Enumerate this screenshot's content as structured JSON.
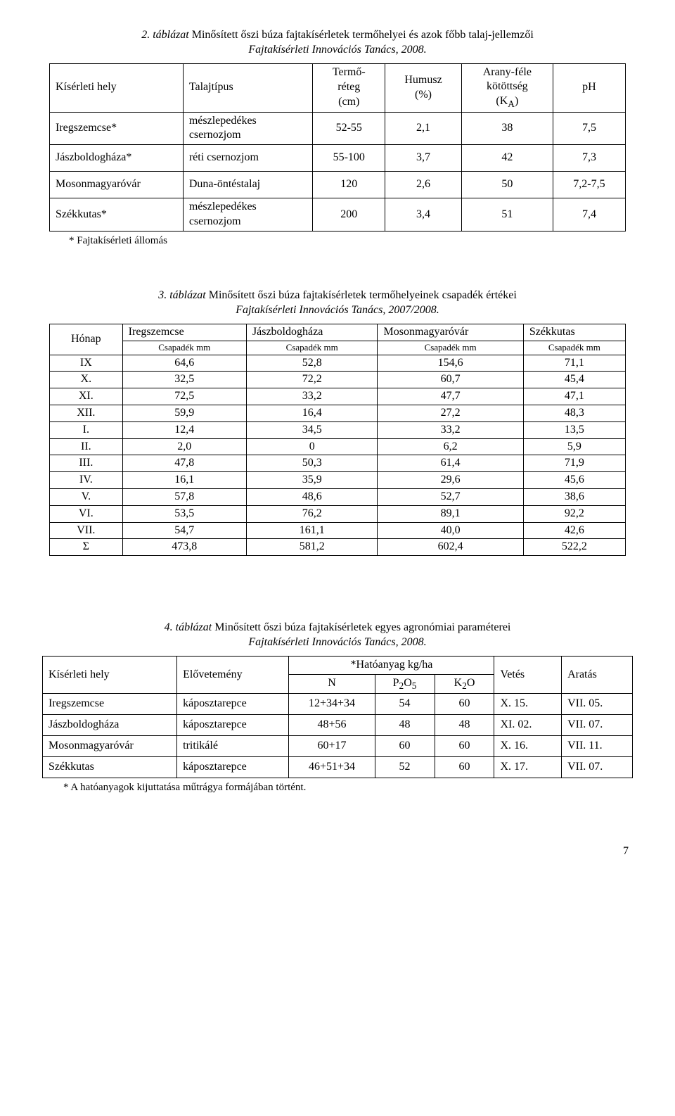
{
  "table1": {
    "caption_num": "2. táblázat",
    "caption_rest": " Minősített őszi búza fajtakísérletek termőhelyei és azok főbb talaj-jellemzői",
    "caption_line2": "Fajtakísérleti Innovációs Tanács, 2008.",
    "headers": {
      "c1": "Kísérleti hely",
      "c2": "Talajtípus",
      "c3_l1": "Termő-",
      "c3_l2": "réteg",
      "c3_l3": "(cm)",
      "c4_l1": "Humusz",
      "c4_l2": "(%)",
      "c5_l1": "Arany-féle",
      "c5_l2": "kötöttség",
      "c5_l3": "(K",
      "c5_sub": "A",
      "c5_l3b": ")",
      "c6": "pH"
    },
    "rows": [
      {
        "c1": "Iregszemcse*",
        "c2_l1": "mészlepedékes",
        "c2_l2": "csernozjom",
        "c3": "52-55",
        "c4": "2,1",
        "c5": "38",
        "c6": "7,5"
      },
      {
        "c1": "Jászboldogháza*",
        "c2": "réti csernozjom",
        "c3": "55-100",
        "c4": "3,7",
        "c5": "42",
        "c6": "7,3"
      },
      {
        "c1": "Mosonmagyaróvár",
        "c2": "Duna-öntéstalaj",
        "c3": "120",
        "c4": "2,6",
        "c5": "50",
        "c6": "7,2-7,5"
      },
      {
        "c1": "Székkutas*",
        "c2_l1": "mészlepedékes",
        "c2_l2": "csernozjom",
        "c3": "200",
        "c4": "3,4",
        "c5": "51",
        "c6": "7,4"
      }
    ],
    "footnote": "* Fajtakísérleti állomás"
  },
  "table2": {
    "caption_num": "3. táblázat",
    "caption_rest": " Minősített őszi búza fajtakísérletek termőhelyeinek csapadék értékei",
    "caption_line2": "Fajtakísérleti Innovációs Tanács, 2007/2008.",
    "h_month": "Hónap",
    "h_cols": [
      "Iregszemcse",
      "Jászboldogháza",
      "Mosonmagyaróvár",
      "Székkutas"
    ],
    "h_sub": "Csapadék mm",
    "rows": [
      [
        "IX",
        "64,6",
        "52,8",
        "154,6",
        "71,1"
      ],
      [
        "X.",
        "32,5",
        "72,2",
        "60,7",
        "45,4"
      ],
      [
        "XI.",
        "72,5",
        "33,2",
        "47,7",
        "47,1"
      ],
      [
        "XII.",
        "59,9",
        "16,4",
        "27,2",
        "48,3"
      ],
      [
        "I.",
        "12,4",
        "34,5",
        "33,2",
        "13,5"
      ],
      [
        "II.",
        "2,0",
        "0",
        "6,2",
        "5,9"
      ],
      [
        "III.",
        "47,8",
        "50,3",
        "61,4",
        "71,9"
      ],
      [
        "IV.",
        "16,1",
        "35,9",
        "29,6",
        "45,6"
      ],
      [
        "V.",
        "57,8",
        "48,6",
        "52,7",
        "38,6"
      ],
      [
        "VI.",
        "53,5",
        "76,2",
        "89,1",
        "92,2"
      ],
      [
        "VII.",
        "54,7",
        "161,1",
        "40,0",
        "42,6"
      ],
      [
        "Σ",
        "473,8",
        "581,2",
        "602,4",
        "522,2"
      ]
    ]
  },
  "table3": {
    "caption_num": "4. táblázat",
    "caption_rest": " Minősített őszi búza fajtakísérletek egyes agronómiai paraméterei",
    "caption_line2": "Fajtakísérleti Innovációs Tanács, 2008.",
    "h_site": "Kísérleti hely",
    "h_prev": "Elővetemény",
    "h_top": "*Hatóanyag kg/ha",
    "h_n": "N",
    "h_p_pre": "P",
    "h_p_sub1": "2",
    "h_p_mid": "O",
    "h_p_sub2": "5",
    "h_k_pre": "K",
    "h_k_sub": "2",
    "h_k_post": "O",
    "h_sow": "Vetés",
    "h_harvest": "Aratás",
    "rows": [
      [
        "Iregszemcse",
        "káposztarepce",
        "12+34+34",
        "54",
        "60",
        "X. 15.",
        "VII. 05."
      ],
      [
        "Jászboldogháza",
        "káposztarepce",
        "48+56",
        "48",
        "48",
        "XI. 02.",
        "VII. 07."
      ],
      [
        "Mosonmagyaróvár",
        "tritikálé",
        "60+17",
        "60",
        "60",
        "X. 16.",
        "VII. 11."
      ],
      [
        "Székkutas",
        "káposztarepce",
        "46+51+34",
        "52",
        "60",
        "X. 17.",
        "VII. 07."
      ]
    ],
    "footnote": "* A hatóanyagok kijuttatása műtrágya formájában történt."
  },
  "page_number": "7"
}
